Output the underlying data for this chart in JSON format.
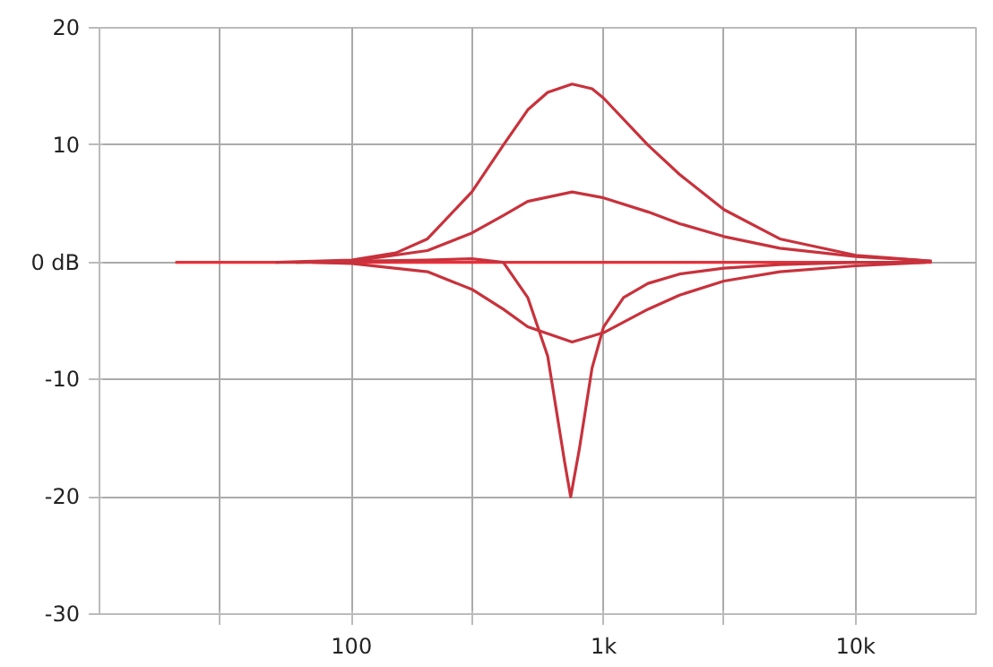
{
  "chart_data": {
    "type": "line",
    "log": "x",
    "grid": true,
    "marker": "none",
    "line_style": "solid",
    "xlim": [
      10,
      30000
    ],
    "ylim": [
      -30,
      20
    ],
    "xticks": [
      {
        "value": 30,
        "label": null
      },
      {
        "value": 100,
        "label": "100"
      },
      {
        "value": 300,
        "label": null
      },
      {
        "value": 1000,
        "label": "1k"
      },
      {
        "value": 3000,
        "label": null
      },
      {
        "value": 10000,
        "label": "10k"
      }
    ],
    "yticks": [
      20,
      10,
      {
        "value": 0,
        "label": "0 dB"
      },
      -10,
      -20,
      -30
    ],
    "series": [
      {
        "color": "#e8303a",
        "x": [
          20,
          20000
        ],
        "values": [
          0,
          0
        ]
      },
      {
        "color": "#c8323c",
        "x": [
          50,
          100,
          150,
          200,
          300,
          400,
          500,
          600,
          750,
          900,
          1000,
          1500,
          2000,
          3000,
          5000,
          10000,
          20000
        ],
        "values": [
          0,
          0.2,
          0.8,
          2,
          6,
          10,
          13,
          14.5,
          15.2,
          14.8,
          14,
          10,
          7.5,
          4.5,
          2,
          0.6,
          0.1
        ]
      },
      {
        "color": "#c8323c",
        "x": [
          60,
          100,
          200,
          300,
          400,
          500,
          750,
          1000,
          1500,
          2000,
          3000,
          5000,
          10000,
          20000
        ],
        "values": [
          0,
          0.1,
          1,
          2.5,
          4,
          5.2,
          6,
          5.5,
          4.3,
          3.3,
          2.2,
          1.2,
          0.5,
          0.1
        ]
      },
      {
        "color": "#c8323c",
        "x": [
          70,
          100,
          200,
          300,
          400,
          500,
          750,
          1000,
          1500,
          2000,
          3000,
          5000,
          10000,
          19000
        ],
        "values": [
          0,
          -0.1,
          -0.8,
          -2.3,
          -4,
          -5.5,
          -6.8,
          -6,
          -4,
          -2.8,
          -1.6,
          -0.8,
          -0.3,
          0
        ]
      },
      {
        "color": "#c8323c",
        "x": [
          80,
          100,
          200,
          300,
          400,
          500,
          600,
          700,
          740,
          800,
          900,
          1000,
          1200,
          1500,
          2000,
          3000,
          5000,
          10000,
          18000
        ],
        "values": [
          0,
          0.1,
          0.2,
          0.3,
          0,
          -3,
          -8,
          -17,
          -20,
          -16,
          -9,
          -5.5,
          -3,
          -1.8,
          -1,
          -0.5,
          -0.2,
          0,
          0
        ]
      }
    ]
  }
}
